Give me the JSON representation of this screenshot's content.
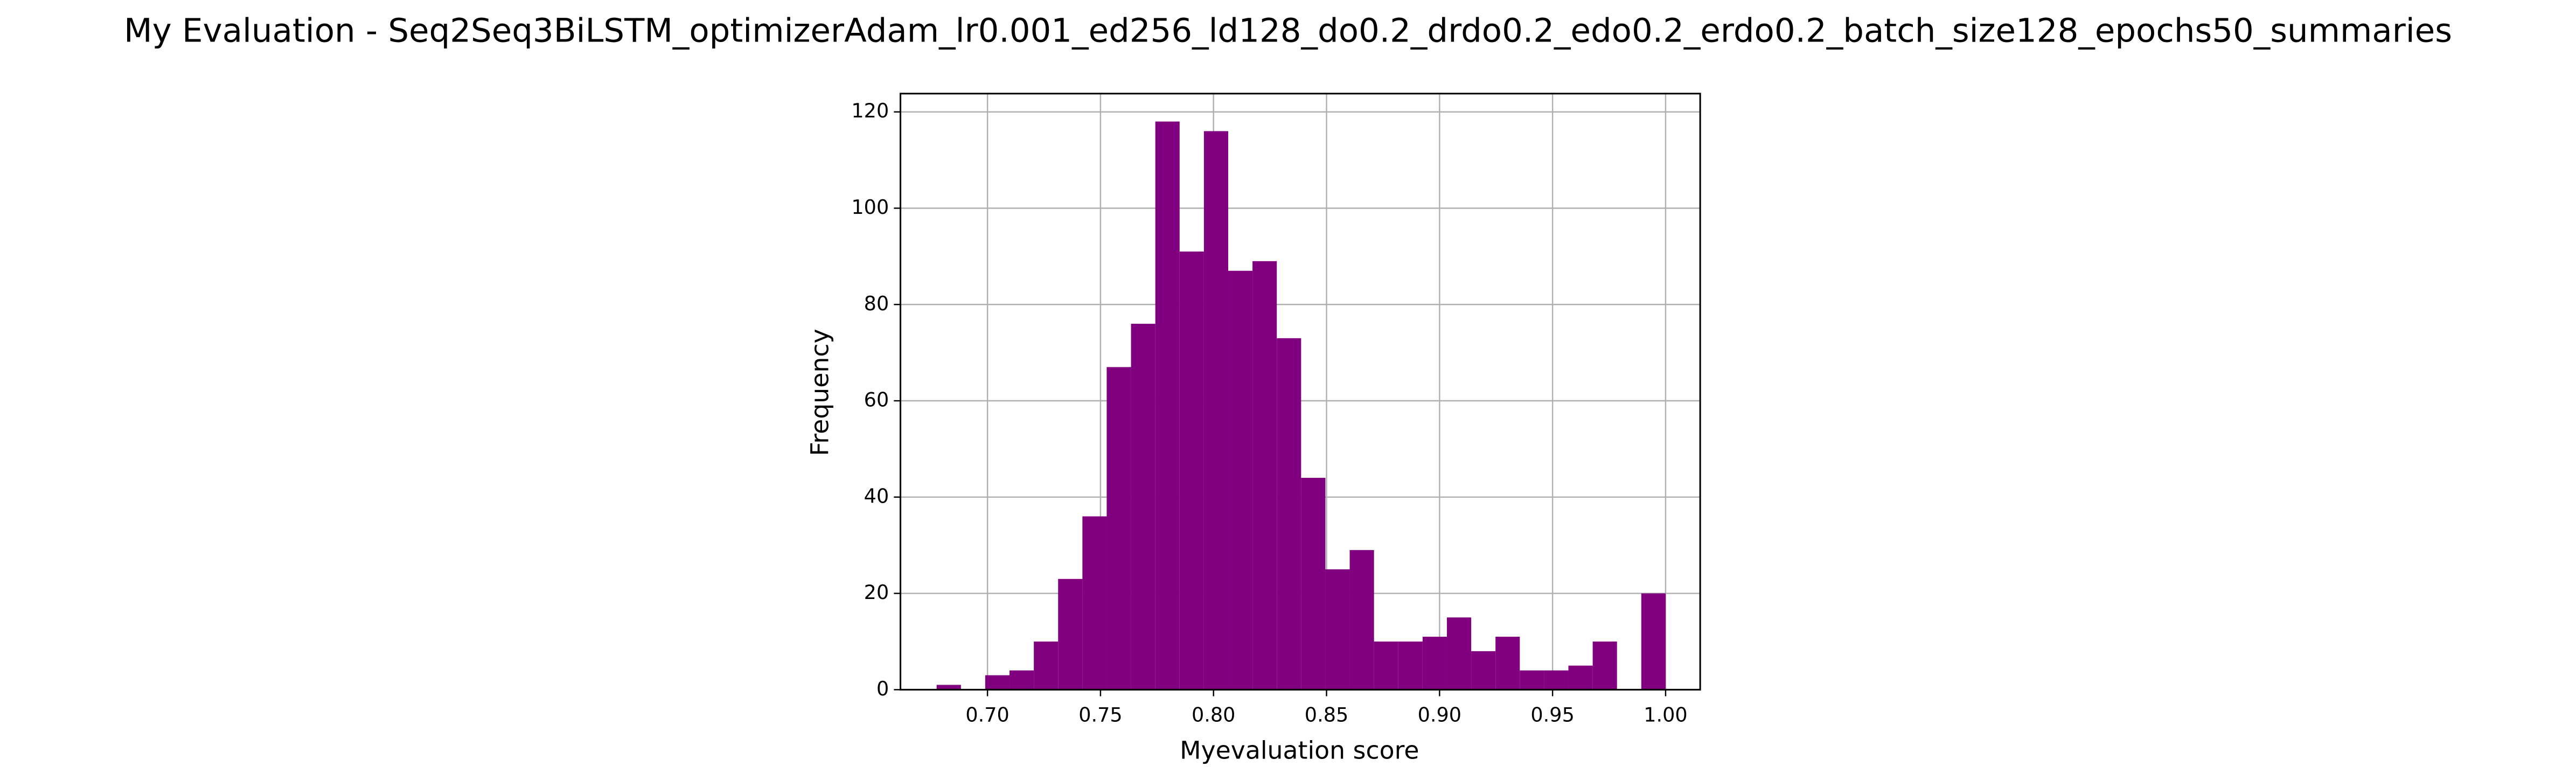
{
  "chart_data": {
    "type": "histogram",
    "title": "My Evaluation - Seq2Seq3BiLSTM_optimizerAdam_lr0.001_ed256_ld128_do0.2_drdo0.2_edo0.2_erdo0.2_batch_size128_epochs50_summaries",
    "x_label": "Myevaluation score",
    "y_label": "Frequency",
    "color": "#800080",
    "grid": true,
    "bins": [
      0.6775,
      0.68825,
      0.699,
      0.70975,
      0.7205,
      0.73125,
      0.742,
      0.75275,
      0.7635,
      0.77425,
      0.785,
      0.79575,
      0.8065,
      0.81725,
      0.828,
      0.83875,
      0.8495,
      0.86025,
      0.871,
      0.88175,
      0.8925,
      0.90325,
      0.914,
      0.92475,
      0.9355,
      0.94625,
      0.957,
      0.96775,
      0.9785,
      0.98925,
      1.0
    ],
    "counts": [
      1,
      0,
      3,
      4,
      10,
      23,
      36,
      67,
      76,
      118,
      91,
      116,
      87,
      89,
      73,
      44,
      25,
      29,
      10,
      10,
      11,
      15,
      8,
      11,
      4,
      4,
      5,
      10,
      0,
      20
    ],
    "xlim": [
      0.6615,
      1.0153
    ],
    "ylim": [
      0,
      123.8
    ],
    "xticks": [
      {
        "value": 0.7,
        "label": "0.70"
      },
      {
        "value": 0.75,
        "label": "0.75"
      },
      {
        "value": 0.8,
        "label": "0.80"
      },
      {
        "value": 0.85,
        "label": "0.85"
      },
      {
        "value": 0.9,
        "label": "0.90"
      },
      {
        "value": 0.95,
        "label": "0.95"
      },
      {
        "value": 1.0,
        "label": "1.00"
      }
    ],
    "yticks": [
      0,
      20,
      40,
      60,
      80,
      100,
      120
    ]
  }
}
